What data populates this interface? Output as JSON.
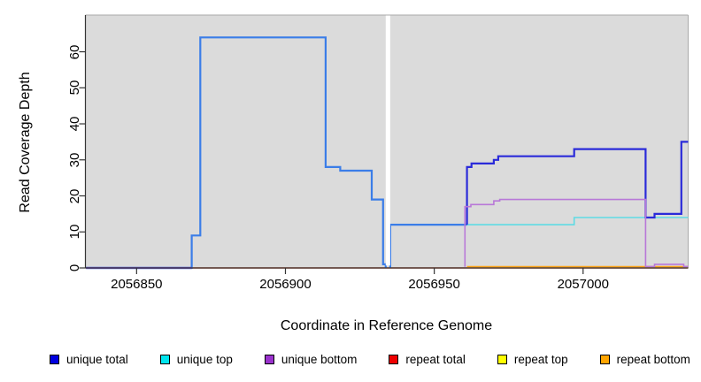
{
  "chart_data": {
    "type": "line",
    "subtype": "step-coverage-plot",
    "title": "",
    "xlabel": "Coordinate in Reference Genome",
    "ylabel": "Read Coverage Depth",
    "xlim": [
      2056832.8,
      2057035.3
    ],
    "ylim": [
      0,
      70.2
    ],
    "x_ticks": [
      2056850,
      2056900,
      2056950,
      2057000
    ],
    "y_ticks": [
      0,
      10,
      20,
      30,
      40,
      50,
      60
    ],
    "grid": false,
    "panel_bg": "#dbdbdb",
    "axis_color": "#333333",
    "panel_edge_color": "#aaaaaa",
    "gap_region": {
      "x_start": 2056933.7,
      "x_end": 2056935.2,
      "fill": "#ffffff"
    },
    "legend_position": "bottom",
    "legend": [
      {
        "label": "unique total",
        "color": "#0000e0"
      },
      {
        "label": "unique top",
        "color": "#00e5ee"
      },
      {
        "label": "unique bottom",
        "color": "#9a32cd"
      },
      {
        "label": "repeat total",
        "color": "#ee0000"
      },
      {
        "label": "repeat top",
        "color": "#ffff00"
      },
      {
        "label": "repeat bottom",
        "color": "#ffa500"
      }
    ],
    "series": [
      {
        "name": "repeat top",
        "color": "#ffff00",
        "width": 1.2,
        "segments": [
          [
            [
              2056833,
              0
            ],
            [
              2057035.3,
              0
            ]
          ]
        ]
      },
      {
        "name": "repeat total",
        "color": "#d84a66",
        "width": 1.4,
        "segments": [
          [
            [
              2056833,
              0
            ],
            [
              2057035.3,
              0
            ]
          ]
        ]
      },
      {
        "name": "repeat bottom",
        "color": "#ffa319",
        "width": 1.6,
        "segments": [
          [
            [
              2056961,
              0.35
            ],
            [
              2057035.3,
              0.35
            ]
          ]
        ]
      },
      {
        "name": "total coverage",
        "color": "#3b7de8",
        "width": 2.2,
        "segments": [
          [
            [
              2056833,
              0
            ],
            [
              2056868.5,
              0
            ],
            [
              2056868.5,
              9
            ],
            [
              2056871.4,
              9
            ],
            [
              2056871.4,
              64
            ],
            [
              2056913.5,
              64
            ],
            [
              2056913.5,
              28
            ],
            [
              2056918.4,
              28
            ],
            [
              2056918.4,
              27
            ],
            [
              2056929,
              27
            ],
            [
              2056929,
              19
            ],
            [
              2056932.8,
              19
            ],
            [
              2056932.8,
              1
            ],
            [
              2056933.7,
              1
            ],
            [
              2056933.7,
              0
            ]
          ],
          [
            [
              2056935.2,
              0
            ],
            [
              2056935.2,
              12
            ],
            [
              2056961,
              12
            ]
          ]
        ]
      },
      {
        "name": "unique top",
        "color": "#5fdbe4",
        "width": 1.6,
        "segments": [
          [
            [
              2056961,
              12
            ],
            [
              2056997,
              12
            ],
            [
              2056997,
              14
            ],
            [
              2057035.3,
              14
            ]
          ]
        ]
      },
      {
        "name": "unique total",
        "color": "#2b2bd9",
        "width": 2.2,
        "segments": [
          [
            [
              2056833,
              0
            ],
            [
              2056868.5,
              0
            ]
          ],
          [
            [
              2056961,
              12
            ],
            [
              2056961,
              28
            ],
            [
              2056962.5,
              28
            ],
            [
              2056962.5,
              29
            ],
            [
              2056970,
              29
            ],
            [
              2056970,
              30
            ],
            [
              2056971.5,
              30
            ],
            [
              2056971.5,
              31
            ],
            [
              2056997,
              31
            ],
            [
              2056997,
              33
            ],
            [
              2057021,
              33
            ],
            [
              2057021,
              14
            ],
            [
              2057024,
              14
            ],
            [
              2057024,
              15
            ],
            [
              2057033,
              15
            ],
            [
              2057033,
              35
            ],
            [
              2057035.3,
              35
            ]
          ]
        ]
      },
      {
        "name": "unique bottom",
        "color": "#b878d8",
        "width": 1.6,
        "segments": [
          [
            [
              2056833,
              0
            ],
            [
              2056868.5,
              0
            ]
          ],
          [
            [
              2056960.3,
              0.3
            ],
            [
              2056960.3,
              17
            ],
            [
              2056962.3,
              17
            ],
            [
              2056962.3,
              17.6
            ],
            [
              2056970,
              17.6
            ],
            [
              2056970,
              18.6
            ],
            [
              2056972,
              18.6
            ],
            [
              2056972,
              19
            ],
            [
              2057021,
              19
            ],
            [
              2057021,
              0.4
            ],
            [
              2057024,
              0.4
            ],
            [
              2057024,
              1
            ],
            [
              2057033.8,
              1
            ],
            [
              2057033.8,
              0.4
            ],
            [
              2057035.3,
              0.4
            ]
          ]
        ]
      }
    ]
  }
}
